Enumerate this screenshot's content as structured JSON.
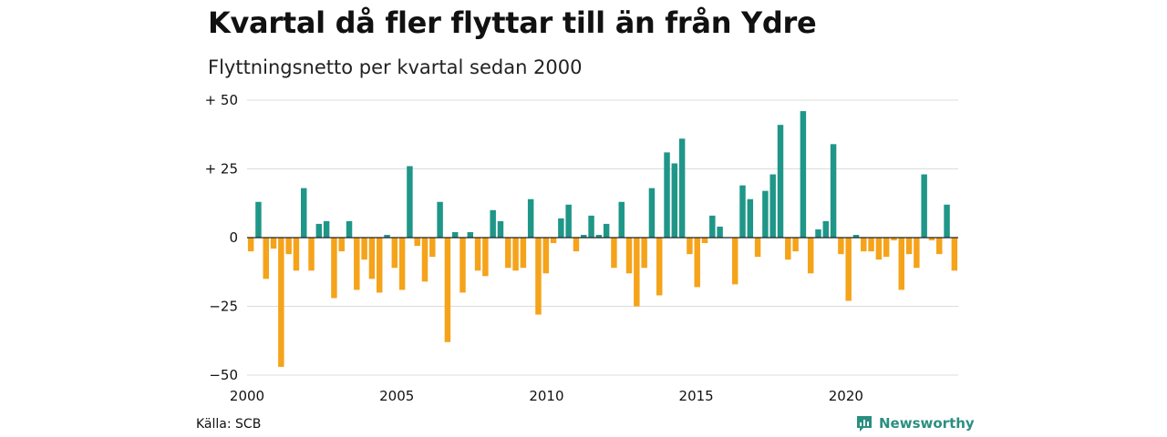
{
  "header": {
    "title": "Kvartal då fler flyttar till än från Ydre",
    "subtitle": "Flyttningsnetto per kvartal sedan 2000"
  },
  "footer": {
    "source": "Källa: SCB",
    "brand": "Newsworthy"
  },
  "colors": {
    "positive": "#1f9688",
    "negative": "#f5a31a",
    "brand": "#2a8f80"
  },
  "chart_data": {
    "type": "bar",
    "title": "Kvartal då fler flyttar till än från Ydre",
    "subtitle": "Flyttningsnetto per kvartal sedan 2000",
    "xlabel": "",
    "ylabel": "",
    "ylim": [
      -50,
      50
    ],
    "xlim": [
      2000,
      2023.75
    ],
    "yticks": [
      {
        "value": 50,
        "label": "+ 50"
      },
      {
        "value": 25,
        "label": "+ 25"
      },
      {
        "value": 0,
        "label": "0"
      },
      {
        "value": -25,
        "label": "−25"
      },
      {
        "value": -50,
        "label": "−50"
      }
    ],
    "xticks": [
      {
        "value": 2000,
        "label": "2000"
      },
      {
        "value": 2005,
        "label": "2005"
      },
      {
        "value": 2010,
        "label": "2010"
      },
      {
        "value": 2015,
        "label": "2015"
      },
      {
        "value": 2020,
        "label": "2020"
      }
    ],
    "grid": true,
    "start_year": 2000,
    "values": [
      -5,
      13,
      -15,
      -4,
      -47,
      -6,
      -12,
      18,
      -12,
      5,
      6,
      -22,
      -5,
      6,
      -19,
      -8,
      -15,
      -20,
      1,
      -11,
      -19,
      26,
      -3,
      -16,
      -7,
      13,
      -38,
      2,
      -20,
      2,
      -12,
      -14,
      10,
      6,
      -11,
      -12,
      -11,
      14,
      -28,
      -13,
      -2,
      7,
      12,
      -5,
      1,
      8,
      1,
      5,
      -11,
      13,
      -13,
      -25,
      -11,
      18,
      -21,
      31,
      27,
      36,
      -6,
      -18,
      -2,
      8,
      4,
      0,
      -17,
      19,
      14,
      -7,
      17,
      23,
      41,
      -8,
      -5,
      46,
      -13,
      3,
      6,
      34,
      -6,
      -23,
      1,
      -5,
      -5,
      -8,
      -7,
      -1,
      -19,
      -6,
      -11,
      23,
      -1,
      -6,
      12,
      -12
    ]
  }
}
